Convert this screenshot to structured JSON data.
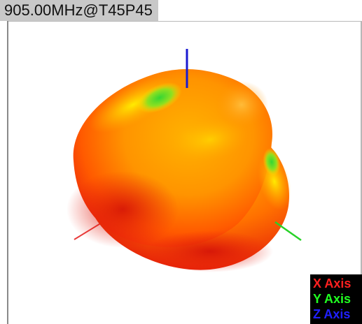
{
  "view": {
    "title": "905.00MHz@T45P45"
  },
  "legend": {
    "items": [
      {
        "label": "X Axis",
        "color": "#ff2020"
      },
      {
        "label": "Y Axis",
        "color": "#20ff20"
      },
      {
        "label": "Z Axis",
        "color": "#2020ff"
      }
    ]
  },
  "axes": {
    "x_color": "#e83a3a",
    "y_color": "#28d228",
    "z_color": "#1a1ad2"
  },
  "pattern": {
    "colors": [
      "#e81a10",
      "#ff6a00",
      "#ffa800",
      "#ffe600",
      "#38d838"
    ]
  }
}
